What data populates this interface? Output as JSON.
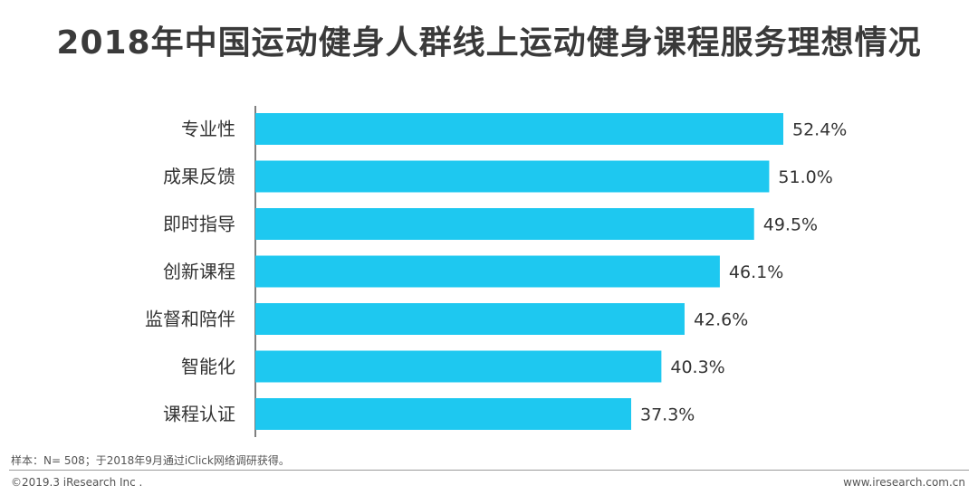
{
  "page": {
    "title": "2018年中国运动健身人群线上运动健身课程服务理想情况",
    "source_note": "样本：N= 508；于2018年9月通过iClick网络调研获得。",
    "copyright": "©2019.3 iResearch Inc .",
    "website": "www.iresearch.com.cn"
  },
  "chart_data": {
    "type": "bar",
    "orientation": "horizontal",
    "title": "2018年中国运动健身人群线上运动健身课程服务理想情况",
    "categories": [
      "专业性",
      "成果反馈",
      "即时指导",
      "创新课程",
      "监督和陪伴",
      "智能化",
      "课程认证"
    ],
    "values": [
      52.4,
      51.0,
      49.5,
      46.1,
      42.6,
      40.3,
      37.3
    ],
    "labels": [
      "52.4%",
      "51.0%",
      "49.5%",
      "46.1%",
      "42.6%",
      "40.3%",
      "37.3%"
    ],
    "value_unit": "%",
    "bar_color": "#1ec8f0",
    "xlim": [
      0,
      52.4
    ],
    "grid": false
  }
}
